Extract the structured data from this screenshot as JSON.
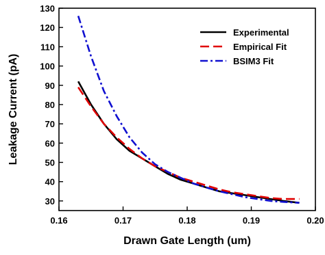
{
  "chart_data": {
    "type": "line",
    "title": "",
    "xlabel": "Drawn Gate Length (um)",
    "ylabel": "Leakage Current (pA)",
    "xlim": [
      0.16,
      0.2
    ],
    "ylim": [
      25,
      130
    ],
    "x_ticks": [
      0.16,
      0.17,
      0.18,
      0.19,
      0.2
    ],
    "x_tick_labels": [
      "0.16",
      "0.17",
      "0.18",
      "0.19",
      "0.20"
    ],
    "y_ticks": [
      30,
      40,
      50,
      60,
      70,
      80,
      90,
      100,
      110,
      120,
      130
    ],
    "y_tick_labels": [
      "30",
      "40",
      "50",
      "60",
      "70",
      "80",
      "90",
      "100",
      "110",
      "120",
      "130"
    ],
    "grid": false,
    "legend_position": "top-right",
    "series": [
      {
        "name": "Experimental",
        "color": "#000000",
        "dash": "solid",
        "x": [
          0.163,
          0.165,
          0.167,
          0.169,
          0.171,
          0.173,
          0.175,
          0.177,
          0.179,
          0.181,
          0.183,
          0.185,
          0.187,
          0.189,
          0.191,
          0.193,
          0.195,
          0.1975
        ],
        "y": [
          92,
          80,
          70,
          62,
          56,
          52,
          48,
          44,
          41,
          39,
          37,
          35,
          34,
          33,
          32,
          31,
          30,
          29
        ]
      },
      {
        "name": "Empirical Fit",
        "color": "#e00000",
        "dash": "dashed",
        "x": [
          0.163,
          0.165,
          0.167,
          0.169,
          0.171,
          0.173,
          0.175,
          0.177,
          0.179,
          0.181,
          0.183,
          0.185,
          0.187,
          0.189,
          0.191,
          0.193,
          0.195,
          0.1975
        ],
        "y": [
          89,
          79,
          70,
          63,
          57,
          52,
          48,
          45,
          42,
          40,
          38,
          36,
          34.5,
          33.5,
          32.5,
          31.5,
          31,
          31
        ]
      },
      {
        "name": "BSIM3 Fit",
        "color": "#1010d0",
        "dash": "dashdot",
        "x": [
          0.163,
          0.165,
          0.167,
          0.169,
          0.171,
          0.173,
          0.175,
          0.177,
          0.179,
          0.181,
          0.183,
          0.185,
          0.187,
          0.189,
          0.191,
          0.193,
          0.195,
          0.1975
        ],
        "y": [
          126,
          105,
          87,
          74,
          63,
          55,
          49,
          45,
          42,
          39,
          37,
          35,
          33.5,
          32,
          31,
          30,
          29.5,
          29
        ]
      }
    ]
  }
}
